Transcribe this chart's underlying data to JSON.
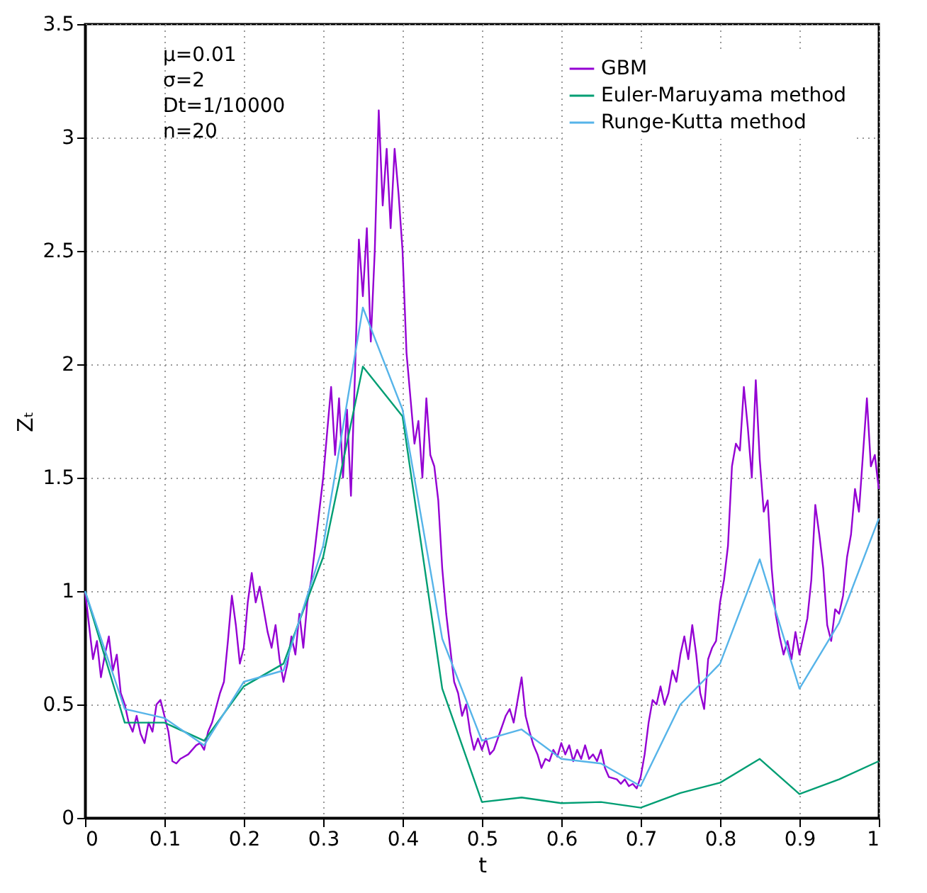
{
  "chart_data": {
    "type": "line",
    "xlabel": "t",
    "ylabel": "Zₜ",
    "xlim": [
      0,
      1
    ],
    "ylim": [
      0,
      3.5
    ],
    "xticks": [
      0,
      0.1,
      0.2,
      0.3,
      0.4,
      0.5,
      0.6,
      0.7,
      0.8,
      0.9,
      1
    ],
    "yticks": [
      0,
      0.5,
      1,
      1.5,
      2,
      2.5,
      3,
      3.5
    ],
    "grid": true,
    "legend": "top right",
    "line_style": "solid",
    "marker": "none",
    "annotations": [
      "μ=0.01",
      "σ=2",
      "Dt=1/10000",
      "n=20"
    ],
    "series": [
      {
        "name": "GBM",
        "color": "#9400d3",
        "x": [
          0,
          0.005,
          0.01,
          0.015,
          0.02,
          0.025,
          0.03,
          0.035,
          0.04,
          0.045,
          0.05,
          0.055,
          0.06,
          0.065,
          0.07,
          0.075,
          0.08,
          0.085,
          0.09,
          0.095,
          0.1,
          0.105,
          0.11,
          0.115,
          0.12,
          0.13,
          0.14,
          0.145,
          0.15,
          0.155,
          0.16,
          0.17,
          0.175,
          0.18,
          0.185,
          0.19,
          0.195,
          0.2,
          0.205,
          0.21,
          0.215,
          0.22,
          0.225,
          0.23,
          0.235,
          0.24,
          0.245,
          0.25,
          0.255,
          0.26,
          0.265,
          0.27,
          0.275,
          0.28,
          0.285,
          0.29,
          0.295,
          0.3,
          0.305,
          0.31,
          0.315,
          0.32,
          0.325,
          0.33,
          0.335,
          0.34,
          0.345,
          0.35,
          0.355,
          0.36,
          0.365,
          0.37,
          0.375,
          0.38,
          0.385,
          0.39,
          0.395,
          0.4,
          0.405,
          0.41,
          0.415,
          0.42,
          0.425,
          0.43,
          0.435,
          0.44,
          0.445,
          0.45,
          0.455,
          0.46,
          0.465,
          0.47,
          0.475,
          0.48,
          0.485,
          0.49,
          0.495,
          0.5,
          0.505,
          0.51,
          0.515,
          0.52,
          0.525,
          0.53,
          0.535,
          0.54,
          0.545,
          0.55,
          0.555,
          0.56,
          0.565,
          0.57,
          0.575,
          0.58,
          0.585,
          0.59,
          0.595,
          0.6,
          0.605,
          0.61,
          0.615,
          0.62,
          0.625,
          0.63,
          0.635,
          0.64,
          0.645,
          0.65,
          0.655,
          0.66,
          0.67,
          0.675,
          0.68,
          0.685,
          0.69,
          0.695,
          0.7,
          0.705,
          0.71,
          0.715,
          0.72,
          0.725,
          0.73,
          0.735,
          0.74,
          0.745,
          0.75,
          0.755,
          0.76,
          0.765,
          0.77,
          0.775,
          0.78,
          0.785,
          0.79,
          0.795,
          0.8,
          0.805,
          0.81,
          0.815,
          0.82,
          0.825,
          0.83,
          0.835,
          0.84,
          0.845,
          0.85,
          0.855,
          0.86,
          0.865,
          0.87,
          0.875,
          0.88,
          0.885,
          0.89,
          0.895,
          0.9,
          0.905,
          0.91,
          0.915,
          0.92,
          0.925,
          0.93,
          0.935,
          0.94,
          0.945,
          0.95,
          0.955,
          0.96,
          0.965,
          0.97,
          0.975,
          0.98,
          0.985,
          0.99,
          0.995,
          1
        ],
        "values": [
          1.0,
          0.85,
          0.7,
          0.78,
          0.62,
          0.72,
          0.8,
          0.65,
          0.72,
          0.55,
          0.5,
          0.42,
          0.38,
          0.45,
          0.37,
          0.33,
          0.42,
          0.38,
          0.5,
          0.52,
          0.45,
          0.38,
          0.25,
          0.24,
          0.26,
          0.28,
          0.32,
          0.33,
          0.3,
          0.38,
          0.42,
          0.55,
          0.6,
          0.78,
          0.98,
          0.85,
          0.68,
          0.75,
          0.95,
          1.08,
          0.95,
          1.02,
          0.92,
          0.82,
          0.75,
          0.85,
          0.7,
          0.6,
          0.68,
          0.8,
          0.72,
          0.9,
          0.75,
          0.95,
          1.05,
          1.2,
          1.35,
          1.5,
          1.7,
          1.9,
          1.6,
          1.85,
          1.5,
          1.8,
          1.42,
          1.95,
          2.55,
          2.3,
          2.6,
          2.1,
          2.5,
          3.12,
          2.7,
          2.95,
          2.6,
          2.95,
          2.75,
          2.5,
          2.05,
          1.85,
          1.65,
          1.75,
          1.5,
          1.85,
          1.6,
          1.55,
          1.4,
          1.1,
          0.9,
          0.75,
          0.6,
          0.55,
          0.45,
          0.5,
          0.38,
          0.3,
          0.35,
          0.3,
          0.35,
          0.28,
          0.3,
          0.35,
          0.4,
          0.45,
          0.48,
          0.42,
          0.52,
          0.62,
          0.45,
          0.38,
          0.32,
          0.28,
          0.22,
          0.26,
          0.25,
          0.3,
          0.27,
          0.33,
          0.28,
          0.32,
          0.25,
          0.3,
          0.26,
          0.32,
          0.26,
          0.28,
          0.25,
          0.3,
          0.22,
          0.18,
          0.17,
          0.15,
          0.17,
          0.14,
          0.15,
          0.13,
          0.18,
          0.28,
          0.42,
          0.52,
          0.5,
          0.58,
          0.5,
          0.55,
          0.65,
          0.6,
          0.72,
          0.8,
          0.7,
          0.85,
          0.72,
          0.55,
          0.48,
          0.7,
          0.75,
          0.78,
          0.95,
          1.05,
          1.2,
          1.55,
          1.65,
          1.62,
          1.9,
          1.72,
          1.5,
          1.93,
          1.58,
          1.35,
          1.4,
          1.1,
          0.9,
          0.8,
          0.72,
          0.78,
          0.7,
          0.82,
          0.72,
          0.8,
          0.88,
          1.05,
          1.38,
          1.25,
          1.1,
          0.85,
          0.78,
          0.92,
          0.9,
          0.98,
          1.15,
          1.25,
          1.45,
          1.35,
          1.6,
          1.85,
          1.55,
          1.6,
          1.45
        ]
      },
      {
        "name": "Euler-Maruyama method",
        "color": "#009e73",
        "x": [
          0,
          0.05,
          0.1,
          0.15,
          0.2,
          0.25,
          0.3,
          0.35,
          0.4,
          0.45,
          0.5,
          0.55,
          0.6,
          0.65,
          0.7,
          0.75,
          0.8,
          0.85,
          0.9,
          0.95,
          1
        ],
        "values": [
          1.0,
          0.42,
          0.42,
          0.34,
          0.58,
          0.68,
          1.15,
          1.99,
          1.77,
          0.57,
          0.07,
          0.09,
          0.065,
          0.07,
          0.045,
          0.11,
          0.155,
          0.26,
          0.105,
          0.17,
          0.25
        ]
      },
      {
        "name": "Runge-Kutta method",
        "color": "#56b4e9",
        "x": [
          0,
          0.05,
          0.1,
          0.15,
          0.2,
          0.25,
          0.3,
          0.35,
          0.4,
          0.45,
          0.5,
          0.55,
          0.6,
          0.65,
          0.7,
          0.75,
          0.8,
          0.85,
          0.9,
          0.95,
          1
        ],
        "values": [
          1.0,
          0.48,
          0.44,
          0.32,
          0.6,
          0.65,
          1.2,
          2.25,
          1.8,
          0.79,
          0.34,
          0.39,
          0.26,
          0.24,
          0.14,
          0.5,
          0.68,
          1.14,
          0.57,
          0.86,
          1.32
        ]
      }
    ]
  }
}
